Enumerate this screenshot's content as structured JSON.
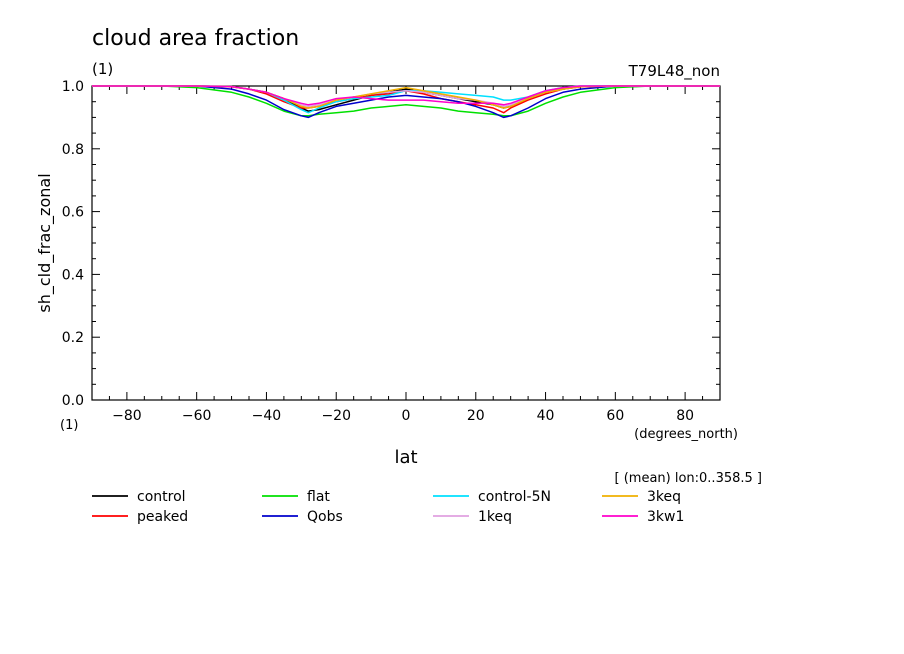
{
  "chart_data": {
    "type": "line",
    "title": "cloud area fraction",
    "title_units": "(1)",
    "run_label": "T79L48_non",
    "xlabel": "lat",
    "x_units": "(degrees_north)",
    "ylabel": "sh_cld_frac_zonal",
    "y_units": "(1)",
    "xlim": [
      -90,
      90
    ],
    "ylim": [
      0.0,
      1.0
    ],
    "x_ticks": [
      -80,
      -60,
      -40,
      -20,
      0,
      20,
      40,
      60,
      80
    ],
    "x_tick_labels": [
      "−80",
      "−60",
      "−40",
      "−20",
      "0",
      "20",
      "40",
      "60",
      "80"
    ],
    "y_ticks": [
      0.0,
      0.2,
      0.4,
      0.6,
      0.8,
      1.0
    ],
    "y_tick_labels": [
      "0.0",
      "0.2",
      "0.4",
      "0.6",
      "0.8",
      "1.0"
    ],
    "annotation": "[ (mean) lon:0..358.5 ]",
    "grid": false,
    "legend_placement": "bottom",
    "x": [
      -90,
      -80,
      -70,
      -60,
      -50,
      -45,
      -40,
      -35,
      -30,
      -28,
      -25,
      -20,
      -15,
      -10,
      -5,
      0,
      5,
      10,
      15,
      20,
      25,
      28,
      30,
      35,
      40,
      45,
      50,
      60,
      70,
      80,
      90
    ],
    "series": [
      {
        "name": "control",
        "color": "#000000",
        "values": [
          1.0,
          1.0,
          1.0,
          1.0,
          0.998,
          0.99,
          0.98,
          0.96,
          0.93,
          0.92,
          0.925,
          0.94,
          0.955,
          0.97,
          0.98,
          0.99,
          0.98,
          0.97,
          0.96,
          0.95,
          0.94,
          0.93,
          0.935,
          0.96,
          0.98,
          0.99,
          0.998,
          1.0,
          1.0,
          1.0,
          1.0
        ]
      },
      {
        "name": "peaked",
        "color": "#ff0000",
        "values": [
          1.0,
          1.0,
          1.0,
          1.0,
          0.997,
          0.99,
          0.975,
          0.95,
          0.93,
          0.93,
          0.935,
          0.95,
          0.96,
          0.97,
          0.975,
          0.985,
          0.975,
          0.96,
          0.95,
          0.94,
          0.93,
          0.915,
          0.93,
          0.955,
          0.975,
          0.99,
          0.997,
          1.0,
          1.0,
          1.0,
          1.0
        ]
      },
      {
        "name": "flat",
        "color": "#00e000",
        "values": [
          1.0,
          1.0,
          1.0,
          0.995,
          0.98,
          0.965,
          0.945,
          0.92,
          0.905,
          0.905,
          0.91,
          0.915,
          0.92,
          0.93,
          0.935,
          0.94,
          0.935,
          0.93,
          0.92,
          0.915,
          0.91,
          0.905,
          0.905,
          0.92,
          0.945,
          0.965,
          0.98,
          0.995,
          1.0,
          1.0,
          1.0
        ]
      },
      {
        "name": "Qobs",
        "color": "#0000cc",
        "values": [
          1.0,
          1.0,
          1.0,
          1.0,
          0.99,
          0.975,
          0.955,
          0.925,
          0.905,
          0.9,
          0.915,
          0.935,
          0.945,
          0.955,
          0.965,
          0.97,
          0.965,
          0.96,
          0.95,
          0.935,
          0.915,
          0.9,
          0.905,
          0.93,
          0.96,
          0.98,
          0.99,
          1.0,
          1.0,
          1.0,
          1.0
        ]
      },
      {
        "name": "control-5N",
        "color": "#00e0ff",
        "values": [
          1.0,
          1.0,
          1.0,
          1.0,
          0.998,
          0.99,
          0.98,
          0.955,
          0.925,
          0.915,
          0.93,
          0.95,
          0.96,
          0.965,
          0.97,
          0.985,
          0.985,
          0.98,
          0.975,
          0.97,
          0.965,
          0.955,
          0.955,
          0.965,
          0.985,
          0.995,
          1.0,
          1.0,
          1.0,
          1.0,
          1.0
        ]
      },
      {
        "name": "1keq",
        "color": "#e0a0e0",
        "values": [
          1.0,
          1.0,
          1.0,
          1.0,
          0.998,
          0.99,
          0.98,
          0.96,
          0.94,
          0.935,
          0.94,
          0.955,
          0.965,
          0.975,
          0.98,
          0.985,
          0.98,
          0.97,
          0.96,
          0.955,
          0.945,
          0.935,
          0.94,
          0.96,
          0.98,
          0.99,
          0.998,
          1.0,
          1.0,
          1.0,
          1.0
        ]
      },
      {
        "name": "3keq",
        "color": "#f0b000",
        "values": [
          1.0,
          1.0,
          1.0,
          1.0,
          0.998,
          0.99,
          0.98,
          0.96,
          0.935,
          0.93,
          0.935,
          0.955,
          0.965,
          0.975,
          0.985,
          0.995,
          0.985,
          0.975,
          0.965,
          0.955,
          0.94,
          0.93,
          0.935,
          0.96,
          0.98,
          0.99,
          0.998,
          1.0,
          1.0,
          1.0,
          1.0
        ]
      },
      {
        "name": "3kw1",
        "color": "#ff00cc",
        "values": [
          1.0,
          1.0,
          1.0,
          1.0,
          0.998,
          0.99,
          0.98,
          0.96,
          0.945,
          0.94,
          0.945,
          0.96,
          0.965,
          0.96,
          0.955,
          0.955,
          0.955,
          0.95,
          0.945,
          0.945,
          0.945,
          0.94,
          0.945,
          0.965,
          0.985,
          0.995,
          1.0,
          1.0,
          1.0,
          1.0,
          1.0
        ]
      }
    ]
  }
}
